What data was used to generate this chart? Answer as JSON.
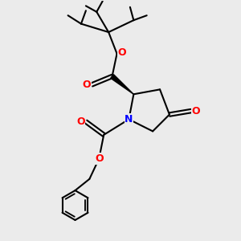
{
  "bg_color": "#ebebeb",
  "bond_color": "#000000",
  "oxygen_color": "#ff0000",
  "nitrogen_color": "#0000ff",
  "lw": 1.5,
  "fig_size": [
    3.0,
    3.0
  ],
  "dpi": 100,
  "xlim": [
    0,
    10
  ],
  "ylim": [
    0,
    10
  ]
}
